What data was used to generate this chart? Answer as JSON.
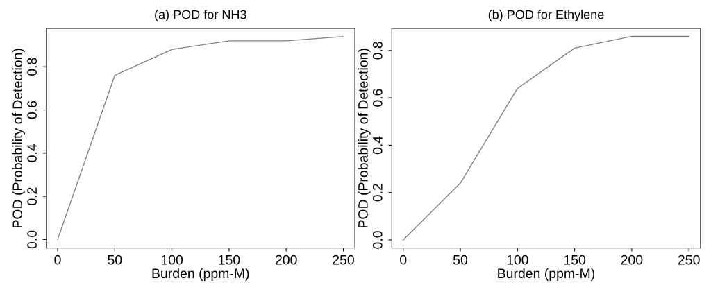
{
  "chart_data": [
    {
      "type": "line",
      "title": "(a) POD for NH3",
      "xlabel": "Burden (ppm-M)",
      "ylabel": "POD (Probability of Detection)",
      "x": [
        0,
        50,
        100,
        150,
        200,
        250
      ],
      "series": [
        {
          "color": "#808080",
          "values": [
            0.0,
            0.76,
            0.88,
            0.92,
            0.92,
            0.94
          ]
        }
      ],
      "xlim": [
        -10,
        260
      ],
      "ylim": [
        -0.039,
        0.977
      ],
      "xticks": [
        0,
        50,
        100,
        150,
        200,
        250
      ],
      "yticks": [
        {
          "value": 0,
          "label": "0.0"
        },
        {
          "value": 0.2,
          "label": "0.2"
        },
        {
          "value": 0.4,
          "label": "0.4"
        },
        {
          "value": 0.6,
          "label": "0.6"
        },
        {
          "value": 0.8,
          "label": "0.8"
        }
      ],
      "grid": false
    },
    {
      "type": "line",
      "title": "(b) POD for Ethylene",
      "xlabel": "Burden (ppm-M)",
      "ylabel": "POD (Probability of Detection)",
      "x": [
        0,
        50,
        100,
        150,
        200,
        250
      ],
      "series": [
        {
          "color": "#808080",
          "values": [
            0.0,
            0.24,
            0.64,
            0.81,
            0.86,
            0.86
          ]
        }
      ],
      "xlim": [
        -10,
        260
      ],
      "ylim": [
        -0.034,
        0.893
      ],
      "xticks": [
        0,
        50,
        100,
        150,
        200,
        250
      ],
      "yticks": [
        {
          "value": 0,
          "label": "0.0"
        },
        {
          "value": 0.2,
          "label": "0.2"
        },
        {
          "value": 0.4,
          "label": "0.4"
        },
        {
          "value": 0.6,
          "label": "0.6"
        },
        {
          "value": 0.8,
          "label": "0.8"
        }
      ],
      "grid": false
    }
  ]
}
